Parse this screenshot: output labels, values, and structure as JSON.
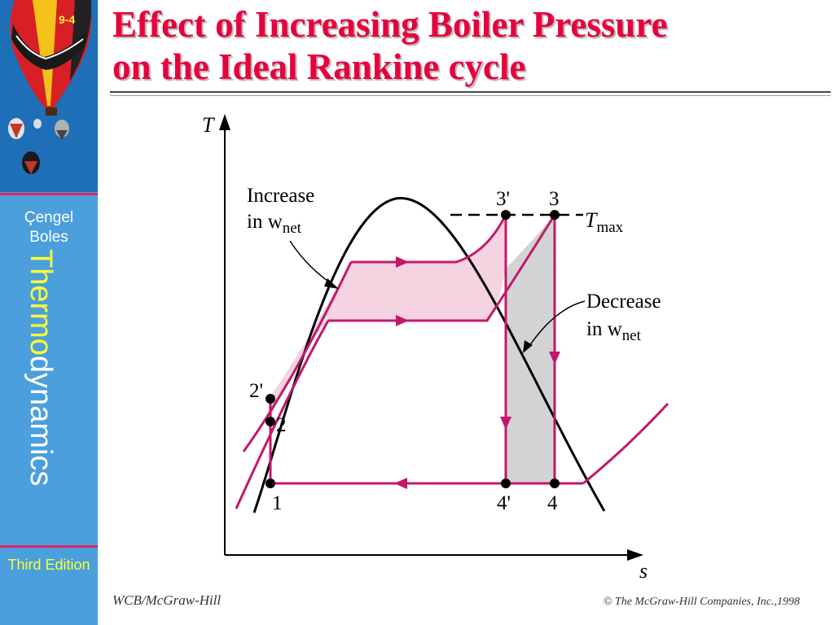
{
  "slide": {
    "number": "9-4",
    "title_line1": "Effect of Increasing Boiler Pressure",
    "title_line2": "on the Ideal Rankine cycle"
  },
  "sidebar": {
    "author1": "Çengel",
    "author2": "Boles",
    "book_title_a": "Thermo",
    "book_title_b": "dynamics",
    "edition": "Third Edition"
  },
  "diagram": {
    "axis_t": "T",
    "axis_s": "s",
    "label_increase_1": "Increase",
    "label_increase_2": "in w",
    "label_decrease_1": "Decrease",
    "label_decrease_2": "in w",
    "subscript_net": "net",
    "t_max": "T",
    "t_max_sub": "max",
    "points": {
      "p1": "1",
      "p2": "2",
      "p2p": "2'",
      "p3": "3",
      "p3p": "3'",
      "p4": "4",
      "p4p": "4'"
    },
    "colors": {
      "cycle": "#c2186b",
      "increase_fill": "#f5d3e0",
      "decrease_fill": "#d3d3d3",
      "dome": "#000000"
    }
  },
  "footer": {
    "publisher": "WCB/McGraw-Hill",
    "copyright": "© The McGraw-Hill Companies, Inc.,1998"
  }
}
